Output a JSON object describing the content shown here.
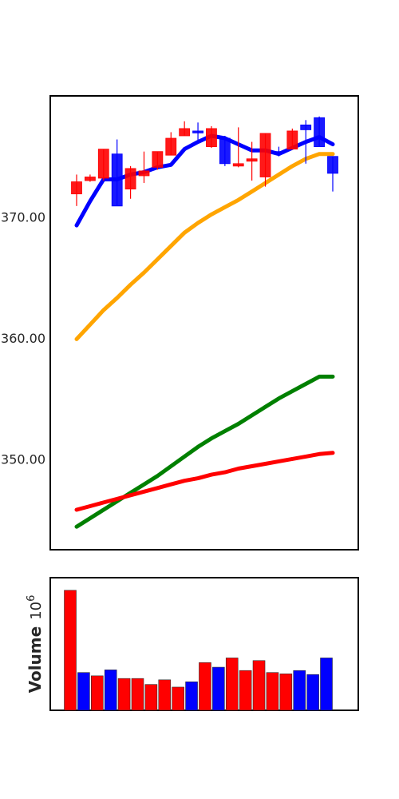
{
  "chart_data": [
    {
      "type": "candlestick",
      "title": "",
      "xlabel": "",
      "ylabel": "",
      "ylim": [
        342.5,
        380.0
      ],
      "yticks": [
        350,
        360,
        370
      ],
      "ytick_labels": [
        "350.00",
        "360.00",
        "370.00"
      ],
      "grid": false,
      "legend": "none",
      "up_color": "#0000ff",
      "down_color": "#ff0000",
      "candles": [
        {
          "open": 372.9,
          "high": 373.5,
          "low": 370.9,
          "close": 371.9
        },
        {
          "open": 373.3,
          "high": 373.5,
          "low": 372.9,
          "close": 373.0
        },
        {
          "open": 375.6,
          "high": 375.6,
          "low": 373.0,
          "close": 373.2
        },
        {
          "open": 370.9,
          "high": 376.4,
          "low": 370.9,
          "close": 375.2
        },
        {
          "open": 374.0,
          "high": 374.2,
          "low": 371.5,
          "close": 372.3
        },
        {
          "open": 373.8,
          "high": 375.4,
          "low": 372.8,
          "close": 373.4
        },
        {
          "open": 375.4,
          "high": 375.4,
          "low": 373.9,
          "close": 374.1
        },
        {
          "open": 376.5,
          "high": 377.0,
          "low": 375.1,
          "close": 375.1
        },
        {
          "open": 377.3,
          "high": 377.9,
          "low": 376.7,
          "close": 376.7
        },
        {
          "open": 377.0,
          "high": 377.8,
          "low": 376.2,
          "close": 377.1
        },
        {
          "open": 377.3,
          "high": 377.5,
          "low": 375.7,
          "close": 375.8
        },
        {
          "open": 374.4,
          "high": 376.7,
          "low": 374.2,
          "close": 376.5
        },
        {
          "open": 374.4,
          "high": 377.4,
          "low": 374.1,
          "close": 374.2
        },
        {
          "open": 374.8,
          "high": 376.2,
          "low": 373.0,
          "close": 374.6
        },
        {
          "open": 376.9,
          "high": 376.9,
          "low": 372.5,
          "close": 373.3
        },
        {
          "open": 375.4,
          "high": 375.8,
          "low": 375.0,
          "close": 375.4
        },
        {
          "open": 377.1,
          "high": 377.3,
          "low": 375.6,
          "close": 375.6
        },
        {
          "open": 377.2,
          "high": 378.0,
          "low": 374.4,
          "close": 377.6
        },
        {
          "open": 375.8,
          "high": 378.3,
          "low": 375.8,
          "close": 378.2
        },
        {
          "open": 373.6,
          "high": 375.0,
          "low": 372.1,
          "close": 375.0
        }
      ],
      "overlays": [
        {
          "color": "#0000ff",
          "values": [
            369.3,
            371.3,
            373.1,
            373.1,
            373.5,
            373.7,
            374.1,
            374.3,
            375.6,
            376.2,
            376.7,
            376.5,
            376.0,
            375.5,
            375.5,
            375.2,
            375.7,
            376.2,
            376.6,
            376.0
          ]
        },
        {
          "color": "#ffa500",
          "values": [
            359.9,
            361.1,
            362.3,
            363.3,
            364.4,
            365.4,
            366.5,
            367.6,
            368.7,
            369.5,
            370.2,
            370.8,
            371.4,
            372.1,
            372.8,
            373.5,
            374.2,
            374.8,
            375.2,
            375.2
          ]
        },
        {
          "color": "#008000",
          "values": [
            344.4,
            345.1,
            345.8,
            346.5,
            347.2,
            347.9,
            348.6,
            349.4,
            350.2,
            351.0,
            351.7,
            352.3,
            352.9,
            353.6,
            354.3,
            355.0,
            355.6,
            356.2,
            356.8,
            356.8
          ]
        },
        {
          "color": "#ff0000",
          "values": [
            345.8,
            346.1,
            346.4,
            346.7,
            347.0,
            347.3,
            347.6,
            347.9,
            348.2,
            348.4,
            348.7,
            348.9,
            349.2,
            349.4,
            349.6,
            349.8,
            350.0,
            350.2,
            350.4,
            350.5
          ]
        }
      ]
    },
    {
      "type": "bar",
      "title": "",
      "xlabel": "",
      "ylabel": "Volume",
      "ylabel_exponent": "10",
      "ylabel_power": "6",
      "ylim": [
        0,
        1.0
      ],
      "grid": false,
      "legend": "none",
      "colors": [
        "#ff0000",
        "#0000ff",
        "#ff0000",
        "#0000ff",
        "#ff0000",
        "#ff0000",
        "#ff0000",
        "#ff0000",
        "#ff0000",
        "#0000ff",
        "#ff0000",
        "#0000ff",
        "#ff0000",
        "#ff0000",
        "#ff0000",
        "#ff0000",
        "#ff0000",
        "#0000ff",
        "#0000ff",
        "#0000ff"
      ],
      "values": [
        0.905,
        0.285,
        0.26,
        0.305,
        0.24,
        0.24,
        0.195,
        0.23,
        0.175,
        0.215,
        0.36,
        0.325,
        0.395,
        0.3,
        0.375,
        0.285,
        0.275,
        0.3,
        0.27,
        0.395
      ]
    }
  ]
}
